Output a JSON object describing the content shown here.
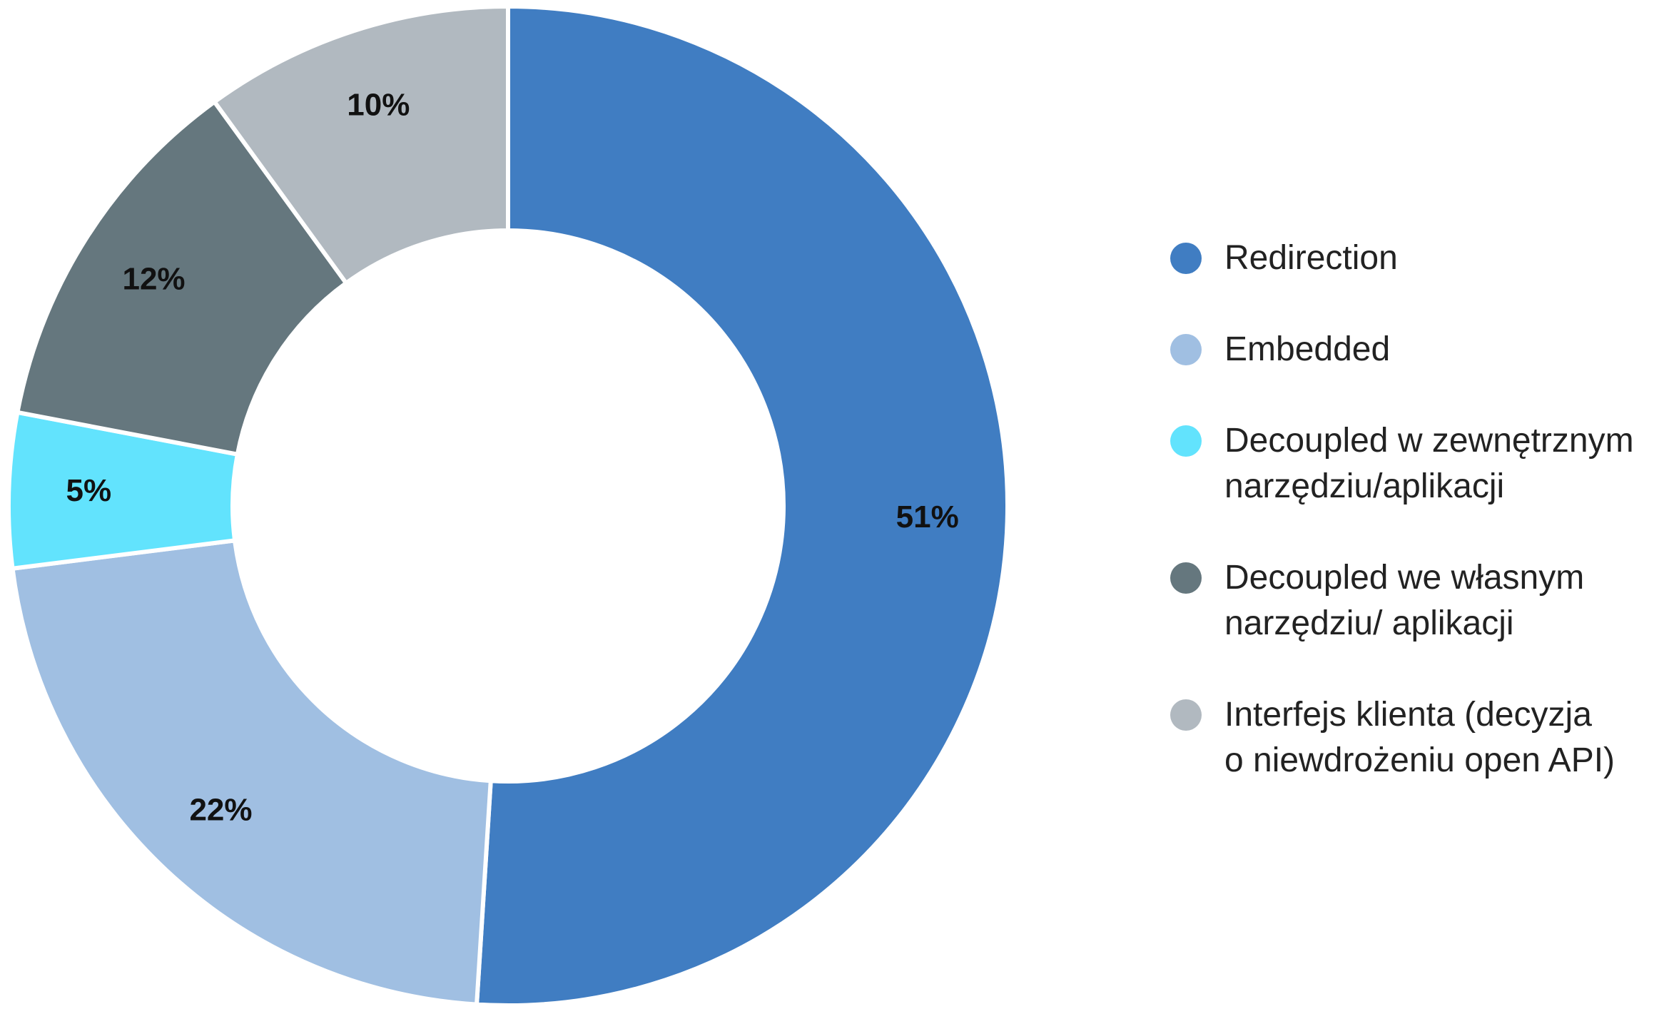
{
  "chart_data": {
    "type": "donut",
    "categories": [
      "Redirection",
      "Embedded",
      "Decoupled w zewnętrznym\nnarzędziu/aplikacji",
      "Decoupled we własnym\nnarzędziu/ aplikacji",
      "Interfejs klienta (decyzja\no niewdrożeniu open API)"
    ],
    "values": [
      51,
      22,
      5,
      12,
      10
    ],
    "value_labels": [
      "51%",
      "22%",
      "5%",
      "12%",
      "10%"
    ],
    "colors": [
      "#407dc2",
      "#a0bfe2",
      "#62e3fd",
      "#65777e",
      "#b1b9c0"
    ],
    "legend": "right"
  }
}
